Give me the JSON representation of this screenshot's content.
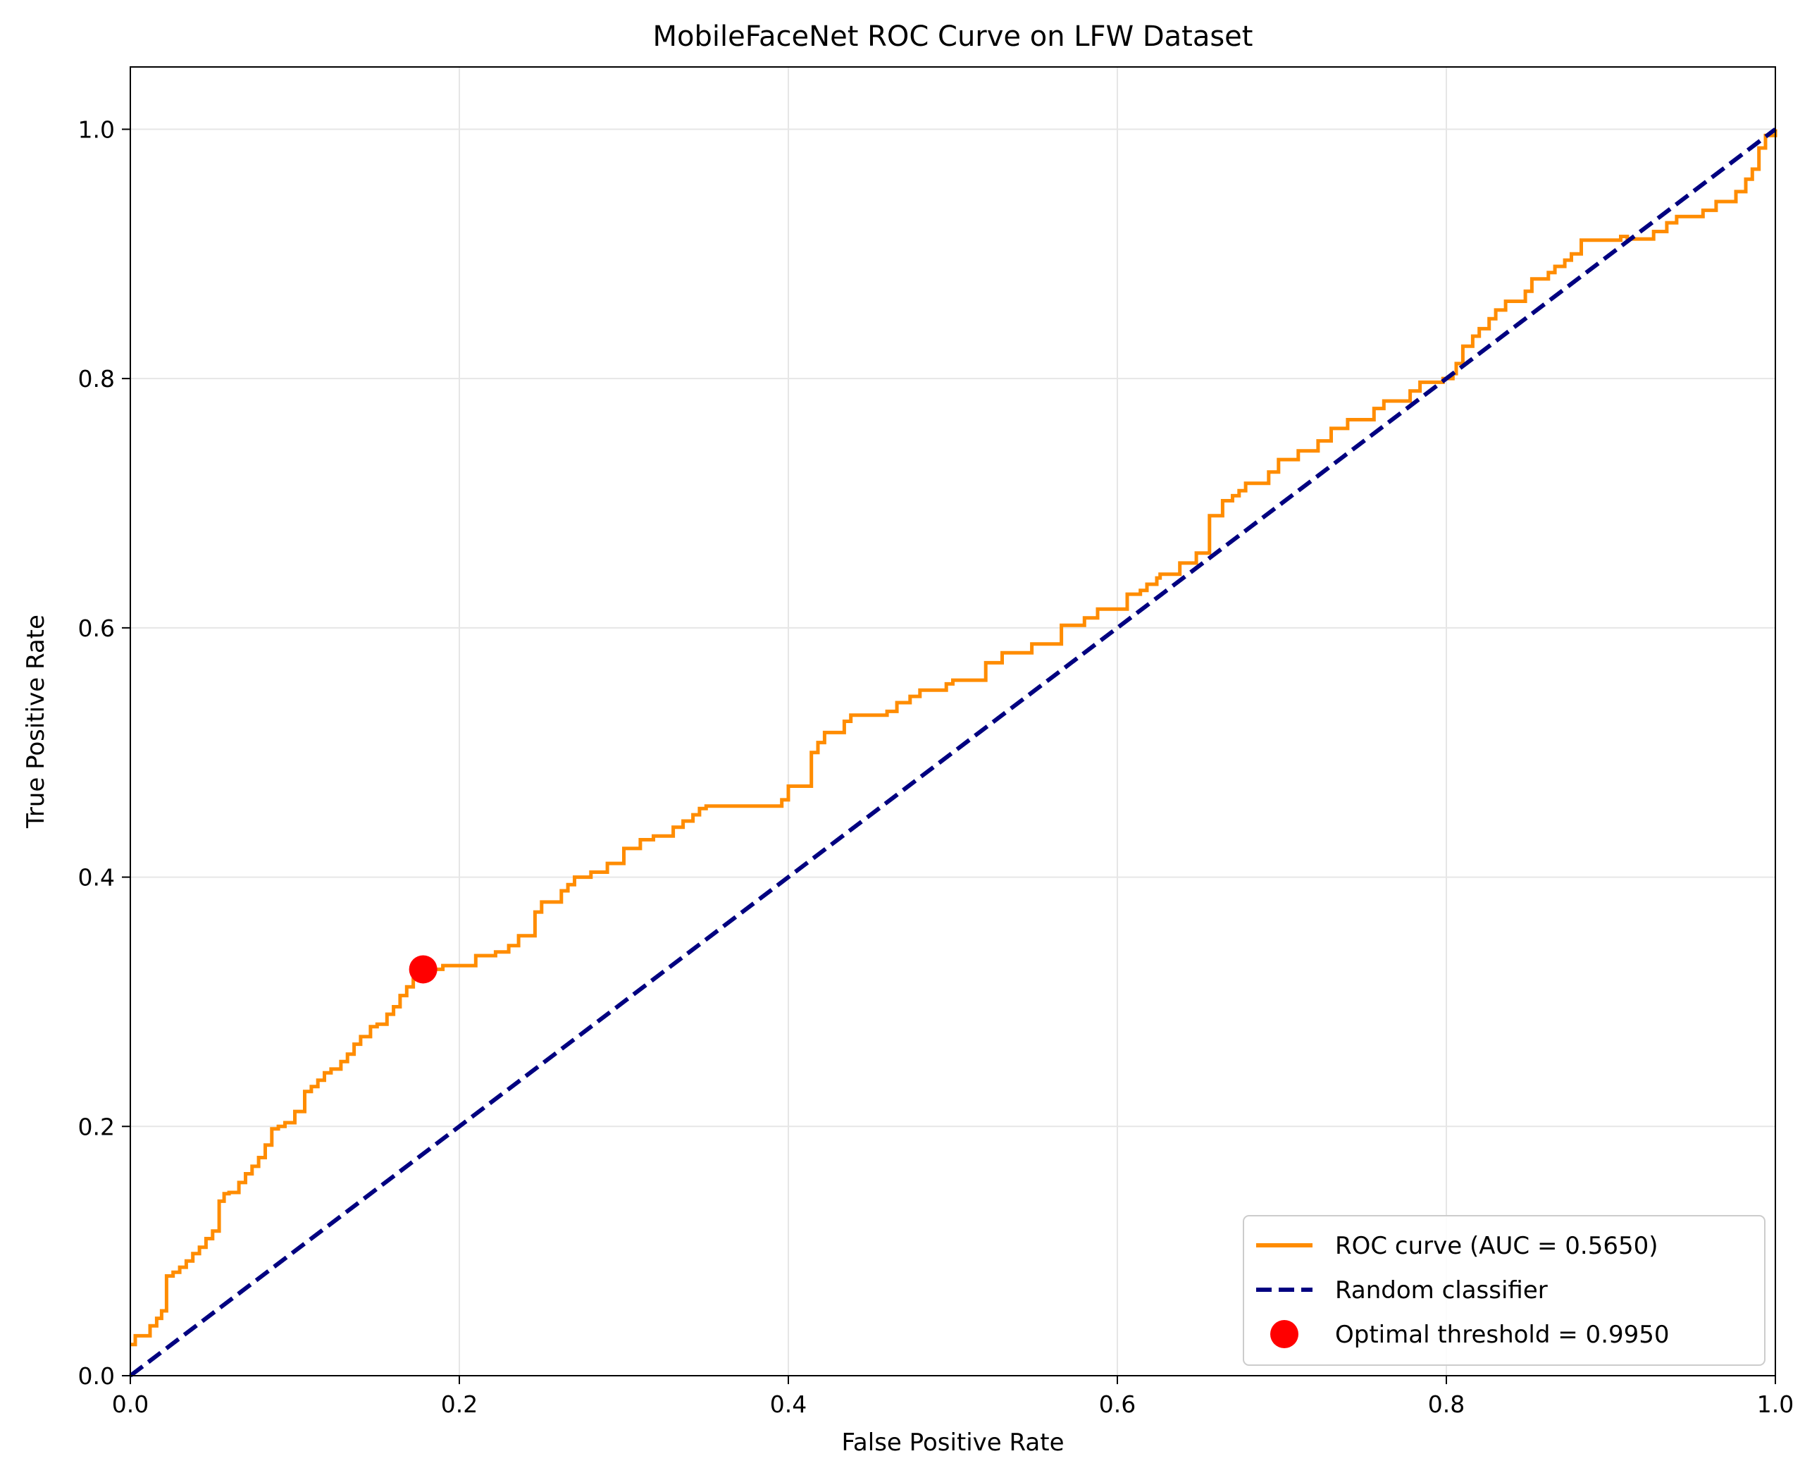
{
  "chart_data": {
    "type": "line",
    "title": "MobileFaceNet ROC Curve on LFW Dataset",
    "xlabel": "False Positive Rate",
    "ylabel": "True Positive Rate",
    "xlim": [
      0.0,
      1.0
    ],
    "ylim": [
      0.0,
      1.05
    ],
    "xticks": [
      0.0,
      0.2,
      0.4,
      0.6,
      0.8,
      1.0
    ],
    "yticks": [
      0.0,
      0.2,
      0.4,
      0.6,
      0.8,
      1.0
    ],
    "xtick_labels": [
      "0.0",
      "0.2",
      "0.4",
      "0.6",
      "0.8",
      "1.0"
    ],
    "ytick_labels": [
      "0.0",
      "0.2",
      "0.4",
      "0.6",
      "0.8",
      "1.0"
    ],
    "grid": true,
    "legend_position": "bottom-right",
    "series": [
      {
        "name": "ROC curve (AUC = 0.5650)",
        "style": "solid",
        "color": "#ff8c00",
        "x": [
          0.0,
          0.003,
          0.006,
          0.012,
          0.016,
          0.019,
          0.022,
          0.026,
          0.03,
          0.034,
          0.038,
          0.042,
          0.046,
          0.05,
          0.054,
          0.057,
          0.06,
          0.066,
          0.07,
          0.074,
          0.078,
          0.082,
          0.086,
          0.09,
          0.094,
          0.1,
          0.106,
          0.11,
          0.114,
          0.118,
          0.122,
          0.128,
          0.132,
          0.136,
          0.14,
          0.146,
          0.15,
          0.156,
          0.16,
          0.164,
          0.168,
          0.172,
          0.176,
          0.178,
          0.19,
          0.21,
          0.222,
          0.23,
          0.236,
          0.246,
          0.25,
          0.262,
          0.266,
          0.27,
          0.28,
          0.29,
          0.3,
          0.31,
          0.318,
          0.33,
          0.336,
          0.342,
          0.346,
          0.35,
          0.38,
          0.396,
          0.4,
          0.414,
          0.418,
          0.422,
          0.434,
          0.438,
          0.46,
          0.466,
          0.474,
          0.48,
          0.496,
          0.5,
          0.52,
          0.53,
          0.544,
          0.548,
          0.556,
          0.566,
          0.58,
          0.588,
          0.606,
          0.61,
          0.614,
          0.618,
          0.622,
          0.624,
          0.626,
          0.638,
          0.648,
          0.656,
          0.664,
          0.668,
          0.67,
          0.674,
          0.678,
          0.692,
          0.698,
          0.71,
          0.716,
          0.722,
          0.73,
          0.74,
          0.756,
          0.762,
          0.778,
          0.784,
          0.798,
          0.804,
          0.806,
          0.81,
          0.816,
          0.82,
          0.826,
          0.83,
          0.836,
          0.848,
          0.852,
          0.862,
          0.866,
          0.872,
          0.876,
          0.882,
          0.906,
          0.91,
          0.926,
          0.934,
          0.94,
          0.956,
          0.964,
          0.976,
          0.982,
          0.986,
          0.99,
          0.994,
          1.0
        ],
        "y": [
          0.025,
          0.032,
          0.032,
          0.04,
          0.046,
          0.052,
          0.08,
          0.083,
          0.087,
          0.092,
          0.098,
          0.103,
          0.11,
          0.116,
          0.14,
          0.146,
          0.147,
          0.155,
          0.162,
          0.168,
          0.175,
          0.185,
          0.198,
          0.2,
          0.203,
          0.212,
          0.228,
          0.232,
          0.237,
          0.243,
          0.246,
          0.252,
          0.258,
          0.266,
          0.272,
          0.28,
          0.282,
          0.29,
          0.296,
          0.305,
          0.312,
          0.318,
          0.324,
          0.326,
          0.329,
          0.337,
          0.34,
          0.345,
          0.353,
          0.372,
          0.38,
          0.389,
          0.394,
          0.4,
          0.404,
          0.411,
          0.423,
          0.43,
          0.433,
          0.44,
          0.445,
          0.45,
          0.455,
          0.457,
          0.457,
          0.462,
          0.473,
          0.5,
          0.508,
          0.516,
          0.525,
          0.53,
          0.533,
          0.54,
          0.545,
          0.55,
          0.555,
          0.558,
          0.572,
          0.58,
          0.58,
          0.587,
          0.587,
          0.602,
          0.608,
          0.615,
          0.627,
          0.627,
          0.63,
          0.635,
          0.635,
          0.64,
          0.643,
          0.652,
          0.66,
          0.69,
          0.702,
          0.702,
          0.706,
          0.71,
          0.716,
          0.725,
          0.735,
          0.742,
          0.742,
          0.75,
          0.76,
          0.767,
          0.776,
          0.782,
          0.79,
          0.797,
          0.8,
          0.804,
          0.812,
          0.826,
          0.834,
          0.84,
          0.848,
          0.855,
          0.862,
          0.87,
          0.88,
          0.885,
          0.89,
          0.895,
          0.9,
          0.911,
          0.914,
          0.912,
          0.918,
          0.925,
          0.93,
          0.935,
          0.942,
          0.95,
          0.96,
          0.968,
          0.985,
          0.995,
          1.0
        ]
      },
      {
        "name": "Random classifier",
        "style": "dashed",
        "color": "#000080",
        "x": [
          0.0,
          1.0
        ],
        "y": [
          0.0,
          1.0
        ]
      }
    ],
    "points": [
      {
        "name": "Optimal threshold = 0.9950",
        "color": "#ff0000",
        "x": 0.178,
        "y": 0.326
      }
    ]
  }
}
